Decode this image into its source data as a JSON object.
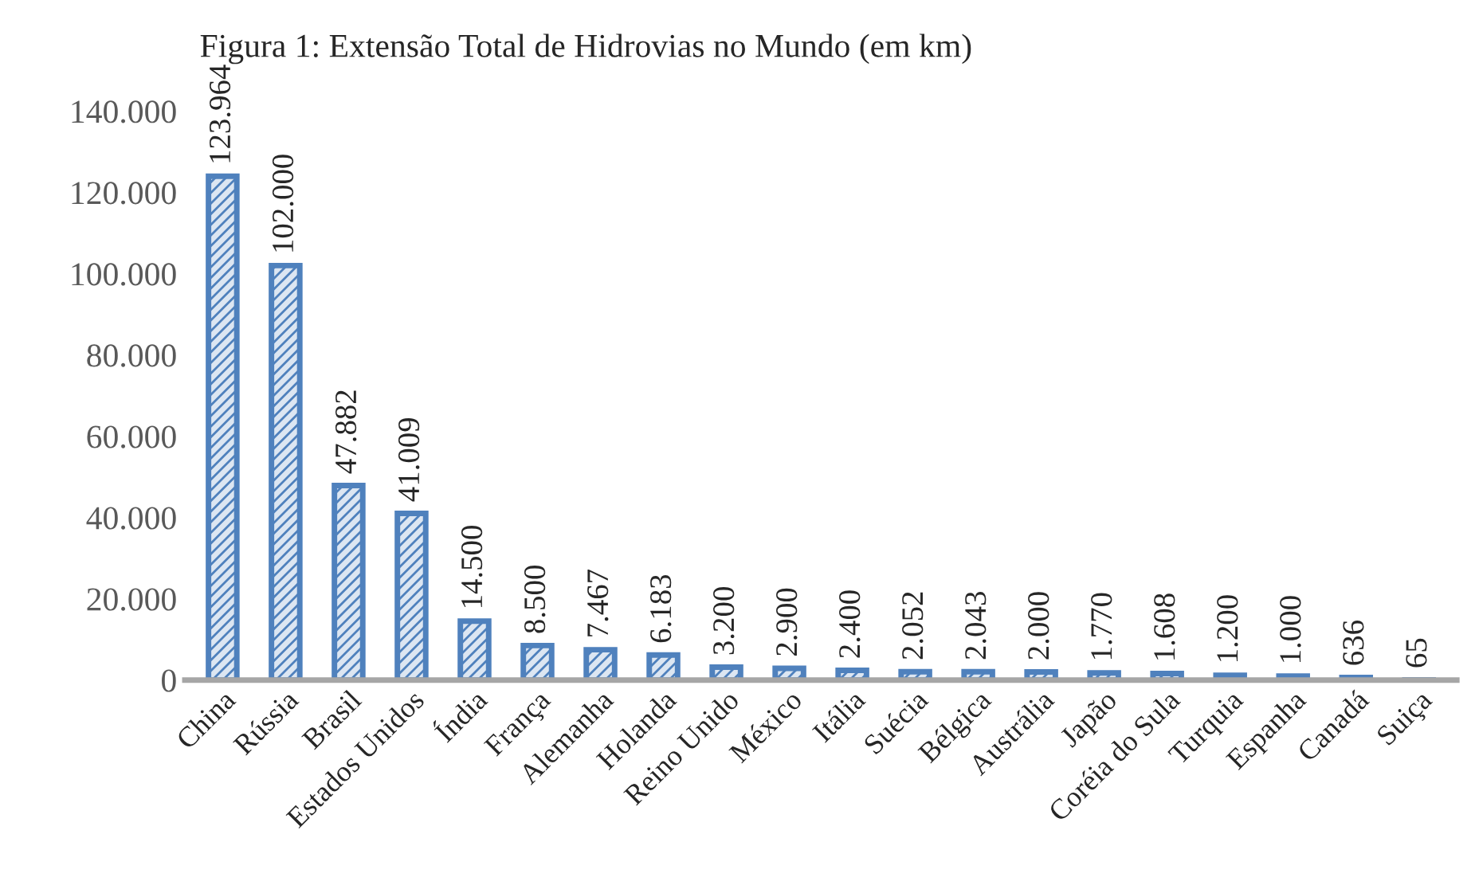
{
  "chart_data": {
    "type": "bar",
    "title": "Figura 1: Extensão Total de Hidrovias no Mundo (em km)",
    "categories": [
      "China",
      "Rússia",
      "Brasil",
      "Estados Unidos",
      "Índia",
      "França",
      "Alemanha",
      "Holanda",
      "Reino Unido",
      "México",
      "Itália",
      "Suécia",
      "Bélgica",
      "Austrália",
      "Japão",
      "Coréia do Sula",
      "Turquia",
      "Espanha",
      "Canadá",
      "Suiça"
    ],
    "values": [
      123964,
      102000,
      47882,
      41009,
      14500,
      8500,
      7467,
      6183,
      3200,
      2900,
      2400,
      2052,
      2043,
      2000,
      1770,
      1608,
      1200,
      1000,
      636,
      65
    ],
    "value_labels": [
      "123.964",
      "102.000",
      "47.882",
      "41.009",
      "14.500",
      "8.500",
      "7.467",
      "6.183",
      "3.200",
      "2.900",
      "2.400",
      "2.052",
      "2.043",
      "2.000",
      "1.770",
      "1.608",
      "1.200",
      "1.000",
      "636",
      "65"
    ],
    "color": "#4f81bd",
    "ylim": [
      0,
      140000
    ],
    "yticks": [
      {
        "value": 0,
        "label": "0"
      },
      {
        "value": 20000,
        "label": "20.000"
      },
      {
        "value": 40000,
        "label": "40.000"
      },
      {
        "value": 60000,
        "label": "60.000"
      },
      {
        "value": 80000,
        "label": "80.000"
      },
      {
        "value": 100000,
        "label": "100.000"
      },
      {
        "value": 120000,
        "label": "120.000"
      },
      {
        "value": 140000,
        "label": "140.000"
      }
    ],
    "grid": false,
    "legend": false
  }
}
